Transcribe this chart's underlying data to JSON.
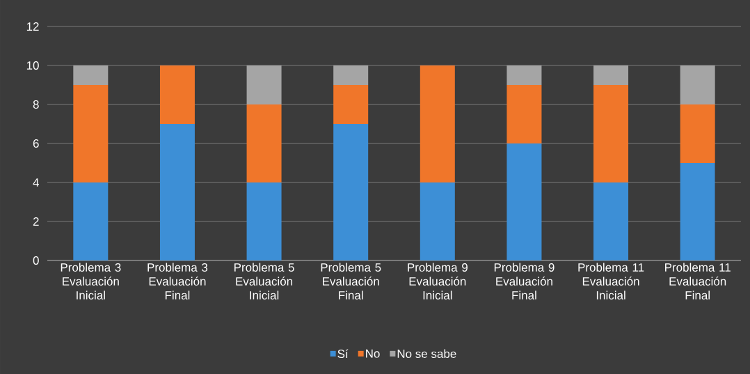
{
  "chart_data": {
    "type": "bar",
    "stacked": true,
    "categories": [
      "Problema 3 Evaluación Inicial",
      "Problema 3 Evaluación Final",
      "Problema 5 Evaluación Inicial",
      "Problema 5 Evaluación Final",
      "Problema 9 Evaluación Inicial",
      "Problema 9 Evaluación Final",
      "Problema 11 Evaluación Inicial",
      "Problema 11 Evaluación Final"
    ],
    "series": [
      {
        "name": "Sí",
        "color": "#3d8fd6",
        "values": [
          4,
          7,
          4,
          7,
          4,
          6,
          4,
          5
        ]
      },
      {
        "name": "No",
        "color": "#f0762a",
        "values": [
          5,
          3,
          4,
          2,
          6,
          3,
          5,
          3
        ]
      },
      {
        "name": "No se sabe",
        "color": "#a5a5a5",
        "values": [
          1,
          0,
          2,
          1,
          0,
          1,
          1,
          2
        ]
      }
    ],
    "ylim": [
      0,
      12
    ],
    "yticks": [
      0,
      2,
      4,
      6,
      8,
      10,
      12
    ],
    "grid": "y",
    "legend": "bottom"
  }
}
